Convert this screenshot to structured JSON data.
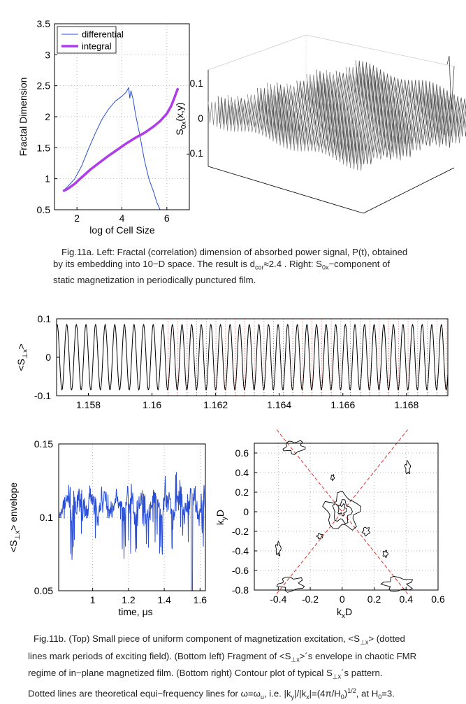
{
  "figure_11a": {
    "left_chart": {
      "type": "line",
      "ylabel": "Fractal Dimension",
      "xlabel": "log of Cell Size",
      "xlim": [
        1.0,
        7.0
      ],
      "ylim": [
        0.5,
        3.5
      ],
      "xticks": [
        2,
        4,
        6
      ],
      "yticks": [
        0.5,
        1,
        1.5,
        2,
        2.5,
        3,
        3.5
      ],
      "legend_position": "top-left",
      "series": [
        {
          "name": "differential",
          "color": "#2a4fd6",
          "x": [
            1.38,
            1.6,
            1.9,
            2.2,
            2.5,
            2.8,
            3.1,
            3.4,
            3.7,
            4.0,
            4.2,
            4.3,
            4.35,
            4.4,
            4.5,
            4.6,
            4.8,
            5.0,
            5.2,
            5.4,
            5.55,
            5.7
          ],
          "y": [
            0.8,
            0.88,
            1.0,
            1.2,
            1.47,
            1.72,
            1.95,
            2.12,
            2.25,
            2.33,
            2.4,
            2.47,
            2.3,
            2.42,
            2.28,
            2.05,
            1.7,
            1.3,
            1.0,
            0.8,
            0.62,
            0.5
          ]
        },
        {
          "name": "integral",
          "color": "#b03be8",
          "x": [
            1.38,
            1.6,
            1.9,
            2.2,
            2.6,
            3.0,
            3.4,
            3.8,
            4.2,
            4.6,
            5.0,
            5.4,
            5.7,
            6.0,
            6.2,
            6.35,
            6.45,
            6.5
          ],
          "y": [
            0.8,
            0.84,
            0.92,
            1.02,
            1.15,
            1.26,
            1.37,
            1.47,
            1.57,
            1.66,
            1.74,
            1.84,
            1.93,
            2.05,
            2.18,
            2.32,
            2.42,
            2.46
          ]
        }
      ]
    },
    "right_chart": {
      "type": "surface",
      "zlabel": "S0x(x,y)",
      "zlabel_main": "S",
      "zlabel_sub": "0x",
      "zlabel_tail": "(x,y)",
      "zticks": [
        "0.1",
        "0",
        "-0.1"
      ]
    },
    "caption": {
      "line1": "Fig.11a. Left: Fractal (correlation) dimension of absorbed power signal, P(t), obtained",
      "line2_a": "by its embedding into 10−D space. The result is d",
      "line2_sub": "cor",
      "line2_b": "≈2.4 . Right: S",
      "line2_sub2": "0x",
      "line2_c": "−component of",
      "line3": "static magnetization in periodically punctured film."
    }
  },
  "figure_11b": {
    "top_chart": {
      "type": "line",
      "ylabel": "<S⊥x>",
      "ylabel_main": "<S",
      "ylabel_sub": "⊥x",
      "ylabel_tail": ">",
      "xlim": [
        1.157,
        1.1693
      ],
      "ylim": [
        -0.1,
        0.1
      ],
      "xticks": [
        "1.158",
        "1.16",
        "1.162",
        "1.164",
        "1.166",
        "1.168"
      ],
      "xtick_values": [
        1.158,
        1.16,
        1.162,
        1.164,
        1.166,
        1.168
      ],
      "yticks": [
        "0.1",
        "0",
        "-0.1"
      ],
      "ytick_values": [
        0.1,
        0,
        -0.1
      ],
      "series": [
        {
          "name": "<S⊥x>",
          "color": "#000000",
          "amplitude": 0.085,
          "period": 0.000302,
          "phase_start": 1.157
        }
      ],
      "marker_lines": {
        "color": "#e03030",
        "style": "dotted",
        "period": 0.000302,
        "start": 1.1605
      }
    },
    "bottom_left_chart": {
      "type": "line",
      "ylabel": "<S⊥x> envelope",
      "ylabel_main": "<S",
      "ylabel_sub": "⊥x",
      "ylabel_tail": "> envelope",
      "xlabel": "time, μs",
      "xlim": [
        0.81,
        1.63
      ],
      "ylim": [
        0.05,
        0.15
      ],
      "xticks": [
        "1",
        "1.2",
        "1.4",
        "1.6"
      ],
      "xtick_values": [
        1.0,
        1.2,
        1.4,
        1.6
      ],
      "yticks": [
        "0.15",
        "0.1",
        "0.05"
      ],
      "ytick_values": [
        0.15,
        0.1,
        0.05
      ],
      "series": [
        {
          "name": "envelope",
          "color": "#2a4fd6",
          "mean": 0.108,
          "spread": 0.012
        }
      ]
    },
    "bottom_right_chart": {
      "type": "contour",
      "xlabel_main": "k",
      "xlabel_sub": "x",
      "xlabel_tail": "D",
      "ylabel_main": "k",
      "ylabel_sub": "y",
      "ylabel_tail": "D",
      "xlim": [
        -0.55,
        0.6
      ],
      "ylim": [
        -0.8,
        0.7
      ],
      "xticks": [
        "-0.4",
        "-0.2",
        "0",
        "0.2",
        "0.4",
        "0.6"
      ],
      "xtick_values": [
        -0.4,
        -0.2,
        0,
        0.2,
        0.4,
        0.6
      ],
      "yticks": [
        "0.6",
        "0.4",
        "0.2",
        "0",
        "-0.2",
        "-0.4",
        "-0.6",
        "-0.8"
      ],
      "ytick_values": [
        0.6,
        0.4,
        0.2,
        0,
        -0.2,
        -0.4,
        -0.6,
        -0.8
      ],
      "equifrequency_slope": 2.047,
      "equifrequency_color": "#e03030"
    },
    "caption": {
      "line1_a": "Fig.11b. (Top) Small piece of uniform component of magnetization excitation, <S",
      "line1_sub": "⊥x",
      "line1_b": "> (dotted",
      "line2": "lines mark periods of exciting field). (Bottom left) Fragment of <S",
      "line2_sub": "⊥x",
      "line2_b": ">´s envelope in chaotic FMR",
      "line3_a": "regime of in−plane magnetized film. (Bottom right) Contour plot of typical S",
      "line3_sub": "⊥x",
      "line3_b": "´s pattern.",
      "line4_a": "Dotted lines are theoretical equi−frequency lines for ω=ω",
      "line4_sub": "u",
      "line4_b": ", i.e. |k",
      "line4_sub2": "y",
      "line4_c": "|/|k",
      "line4_sub3": "x",
      "line4_d": "|=(4π/H",
      "line4_sub4": "0",
      "line4_e": ")",
      "line4_sup": "1/2",
      "line4_f": ", at H",
      "line4_sub5": "0",
      "line4_g": "=3."
    }
  }
}
